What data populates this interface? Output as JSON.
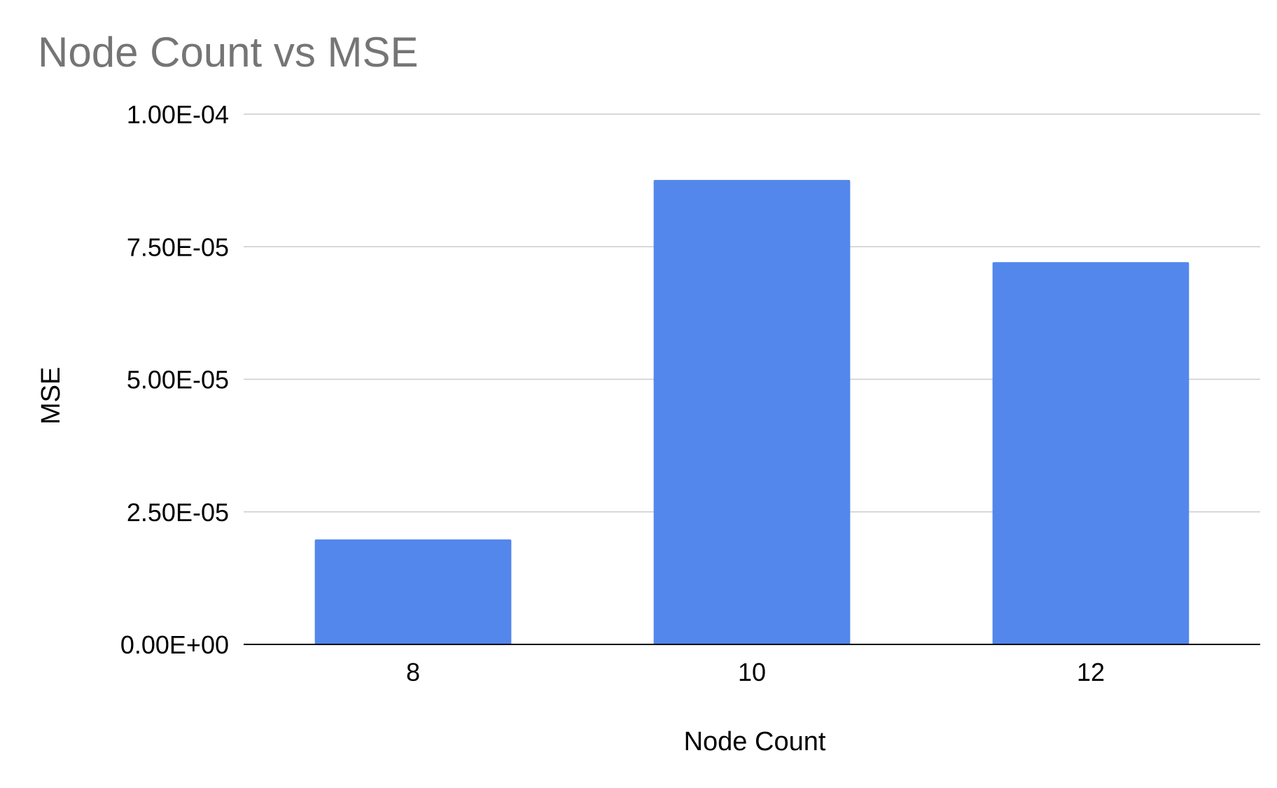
{
  "chart_data": {
    "type": "bar",
    "title": "Node Count vs MSE",
    "xlabel": "Node Count",
    "ylabel": "MSE",
    "categories": [
      "8",
      "10",
      "12"
    ],
    "values": [
      1.98e-05,
      8.76e-05,
      7.21e-05
    ],
    "ylim": [
      0,
      0.0001
    ],
    "yticks": [
      {
        "value": 0,
        "label": "0.00E+00"
      },
      {
        "value": 2.5e-05,
        "label": "2.50E-05"
      },
      {
        "value": 5e-05,
        "label": "5.00E-05"
      },
      {
        "value": 7.5e-05,
        "label": "7.50E-05"
      },
      {
        "value": 0.0001,
        "label": "1.00E-04"
      }
    ],
    "grid": true,
    "legend": "none",
    "bar_color": "#5387ec"
  }
}
